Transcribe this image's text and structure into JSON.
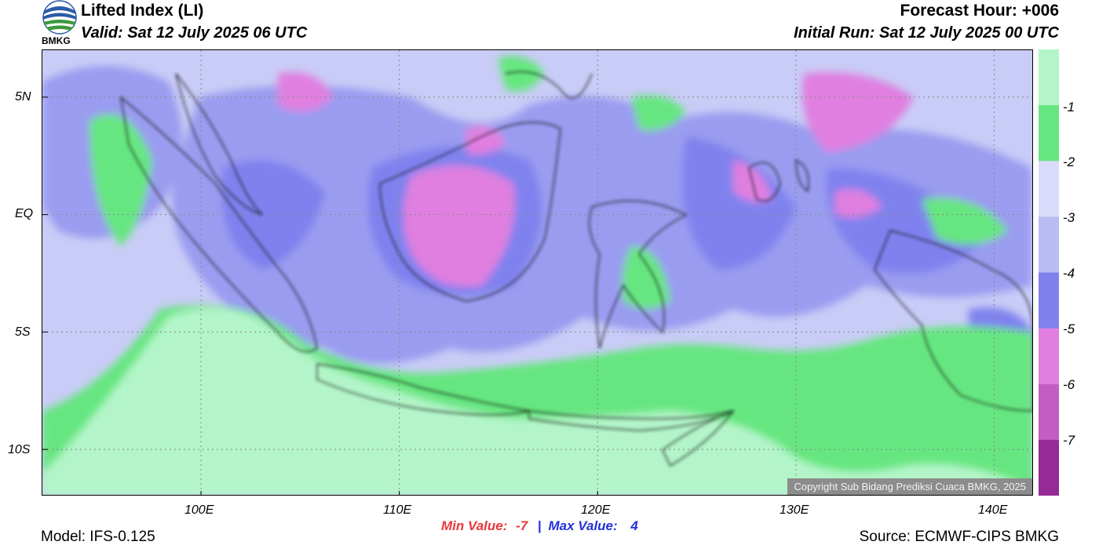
{
  "header": {
    "title": "Lifted Index (LI)",
    "valid": "Valid: Sat 12 July 2025 06 UTC",
    "forecast_hour": "Forecast Hour: +006",
    "initial_run": "Initial Run: Sat 12 July 2025 00 UTC",
    "logo_text": "BMKG"
  },
  "map": {
    "lat_labels": [
      "5N",
      "EQ",
      "5S",
      "10S"
    ],
    "lon_labels": [
      "100E",
      "110E",
      "120E",
      "130E",
      "140E"
    ],
    "lat_values": [
      5,
      0,
      -5,
      -10
    ],
    "lon_values": [
      100,
      110,
      120,
      130,
      140
    ],
    "lat_range": [
      -12,
      7
    ],
    "lon_range": [
      92,
      142
    ],
    "copyright": "Copyright Sub Bidang Prediksi Cuaca BMKG, 2025"
  },
  "colorbar": {
    "tick_labels": [
      "-1",
      "-2",
      "-3",
      "-4",
      "-5",
      "-6",
      "-7"
    ],
    "colors": [
      "#b3f5c9",
      "#66e680",
      "#d9dcfa",
      "#b8bcf2",
      "#7f82ee",
      "#e07fe0",
      "#c45cc4",
      "#962a96"
    ]
  },
  "stats": {
    "min_label": "Min Value:",
    "min_value": "-7",
    "separator": "|",
    "max_label": "Max Value:",
    "max_value": "4",
    "min_color": "#e8383d",
    "max_color": "#2330d9"
  },
  "footer": {
    "model": "Model: IFS-0.125",
    "source": "Source: ECMWF-CIPS BMKG"
  }
}
